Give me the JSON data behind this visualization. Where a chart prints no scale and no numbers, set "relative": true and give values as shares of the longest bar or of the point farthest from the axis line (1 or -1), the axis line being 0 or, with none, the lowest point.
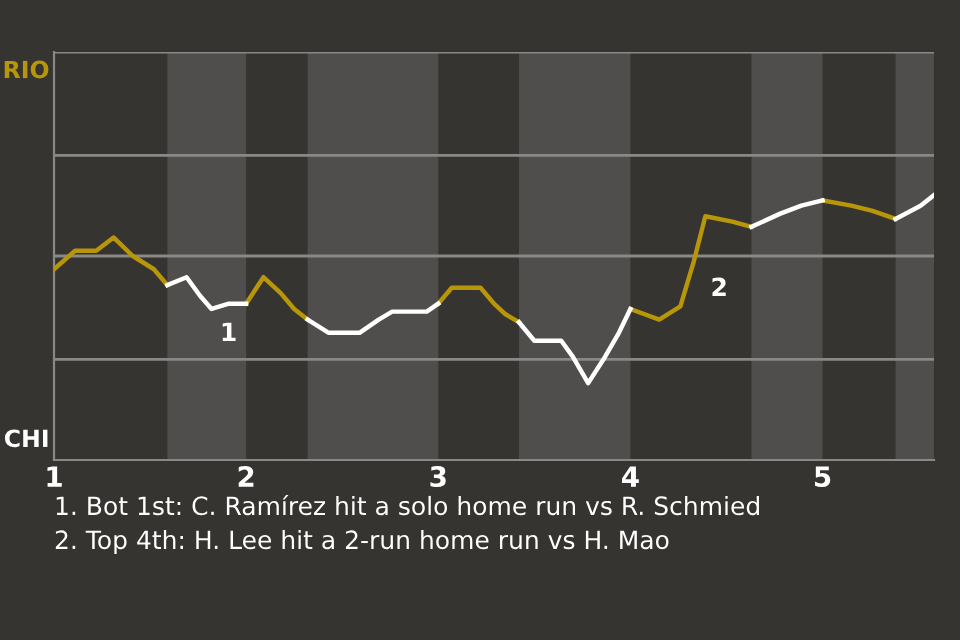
{
  "chart_data": {
    "type": "line",
    "relative": true,
    "xlim": [
      1,
      5.58
    ],
    "xticks": [
      1,
      2,
      3,
      4,
      5
    ],
    "legend": false,
    "ref_lines": [
      {
        "axis": "y",
        "value": 0.38,
        "color": "#8a8886"
      },
      {
        "axis": "y",
        "value": 0.77,
        "color": "#8a8886"
      },
      {
        "axis": "y",
        "value": 1.15,
        "color": "#8a8886"
      },
      {
        "axis": "y",
        "value": 1.54,
        "color": "#8a8886"
      }
    ],
    "marker": "none",
    "line_style": "solid",
    "series": [
      {
        "name": "RIO",
        "color": "#b8960a",
        "x": [
          1.0,
          1.11,
          1.22,
          1.31,
          1.41,
          1.52,
          1.59,
          1.8,
          2.0,
          2.09,
          2.18,
          2.25,
          2.32,
          2.6,
          3.0,
          3.07,
          3.22,
          3.29,
          3.35,
          3.42,
          3.7,
          4.0,
          4.15,
          4.26,
          4.33,
          4.39,
          4.53,
          4.63,
          4.8,
          5.0,
          5.15,
          5.26,
          5.38
        ],
        "values": [
          0.72,
          0.79,
          0.79,
          0.84,
          0.77,
          0.72,
          0.66,
          null,
          0.59,
          0.69,
          0.63,
          0.57,
          0.53,
          null,
          0.59,
          0.65,
          0.65,
          0.59,
          0.55,
          0.52,
          null,
          0.57,
          0.53,
          0.58,
          0.75,
          0.92,
          0.9,
          0.88,
          null,
          0.98,
          0.96,
          0.94,
          0.91
        ]
      },
      {
        "name": "CHI",
        "color": "#ffffff",
        "x": [
          1.59,
          1.69,
          1.76,
          1.82,
          1.91,
          2.0,
          2.2,
          2.32,
          2.43,
          2.59,
          2.69,
          2.76,
          2.94,
          3.0,
          3.2,
          3.42,
          3.5,
          3.64,
          3.7,
          3.78,
          3.86,
          3.94,
          4.0,
          4.3,
          4.63,
          4.78,
          4.89,
          5.0,
          5.2,
          5.38,
          5.51,
          5.58
        ],
        "values": [
          0.66,
          0.69,
          0.62,
          0.57,
          0.59,
          0.59,
          null,
          0.53,
          0.48,
          0.48,
          0.53,
          0.56,
          0.56,
          0.59,
          null,
          0.52,
          0.45,
          0.45,
          0.39,
          0.29,
          0.38,
          0.48,
          0.57,
          null,
          0.88,
          0.93,
          0.96,
          0.98,
          null,
          0.91,
          0.96,
          1
        ]
      }
    ],
    "bands": [
      {
        "axis": "x",
        "from": 1.59,
        "to": 2.0,
        "color": "#4f4e4c"
      },
      {
        "axis": "x",
        "from": 2.32,
        "to": 3.0,
        "color": "#4f4e4c"
      },
      {
        "axis": "x",
        "from": 3.42,
        "to": 4.0,
        "color": "#4f4e4c"
      },
      {
        "axis": "x",
        "from": 4.63,
        "to": 5.0,
        "color": "#4f4e4c"
      },
      {
        "axis": "x",
        "from": 5.38,
        "to": 5.58,
        "color": "#4f4e4c"
      }
    ],
    "annotations": [
      {
        "text": "1",
        "x": 1.82,
        "y": 0.57
      },
      {
        "text": "2",
        "x": 4.33,
        "y": 0.75
      },
      "1. Bot 1st: C. Ramírez hit a solo home run vs R. Schmied",
      "2. Top 4th: H. Lee hit a 2-run home run vs H. Mao"
    ]
  }
}
